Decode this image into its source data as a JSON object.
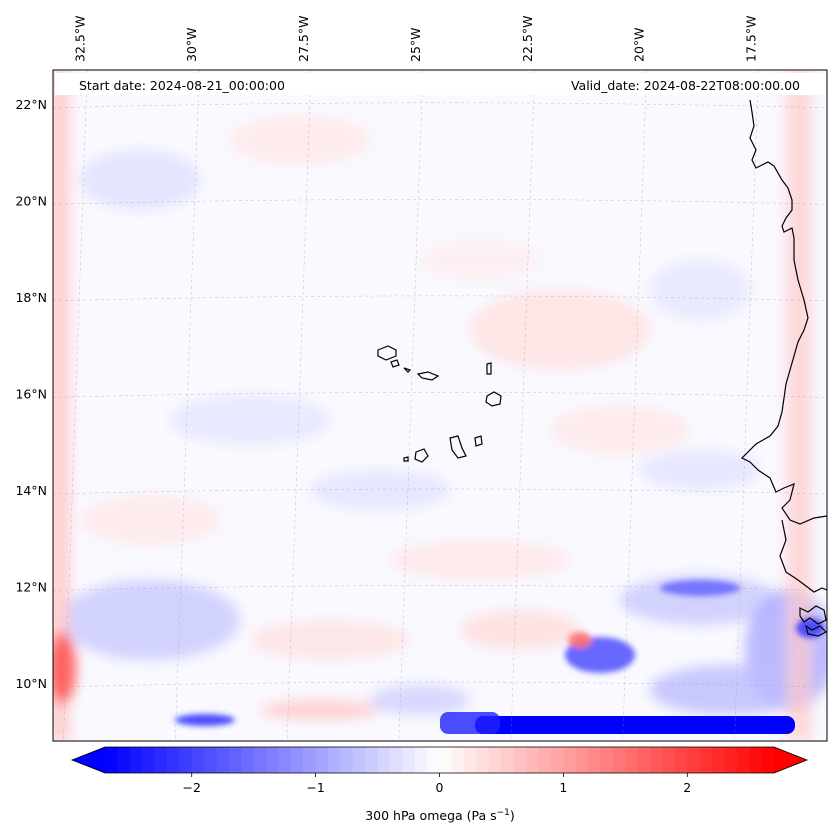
{
  "header": {
    "start_date": "Start date: 2024-08-21_00:00:00",
    "valid_date": "Valid_date: 2024-08-22T08:00:00.00"
  },
  "map": {
    "extent": {
      "lon_min": -33.0,
      "lon_max": -15.7,
      "lat_min": 8.8,
      "lat_max": 22.7
    },
    "lon_ticks": [
      {
        "value": -32.5,
        "label": "32.5°W"
      },
      {
        "value": -30.0,
        "label": "30°W"
      },
      {
        "value": -27.5,
        "label": "27.5°W"
      },
      {
        "value": -25.0,
        "label": "25°W"
      },
      {
        "value": -22.5,
        "label": "22.5°W"
      },
      {
        "value": -20.0,
        "label": "20°W"
      },
      {
        "value": -17.5,
        "label": "17.5°W"
      }
    ],
    "lat_ticks": [
      {
        "value": 10,
        "label": "10°N"
      },
      {
        "value": 12,
        "label": "12°N"
      },
      {
        "value": 14,
        "label": "14°N"
      },
      {
        "value": 16,
        "label": "16°N"
      },
      {
        "value": 18,
        "label": "18°N"
      },
      {
        "value": 20,
        "label": "20°N"
      },
      {
        "value": 22,
        "label": "22°N"
      }
    ],
    "field": "300 hPa omega",
    "features": [
      "Cape Verde islands",
      "West African coastline"
    ]
  },
  "colorbar": {
    "min": -2.7,
    "max": 2.7,
    "colormap": "bwr",
    "low_color": "#0000ff",
    "mid_color": "#ffffff",
    "high_color": "#ff0000",
    "ticks": [
      {
        "value": -2,
        "label": "−2"
      },
      {
        "value": -1,
        "label": "−1"
      },
      {
        "value": 0,
        "label": "0"
      },
      {
        "value": 1,
        "label": "1"
      },
      {
        "value": 2,
        "label": "2"
      }
    ],
    "label_main": "300 hPa omega (Pa s",
    "label_sup": "−1",
    "label_end": ")"
  }
}
